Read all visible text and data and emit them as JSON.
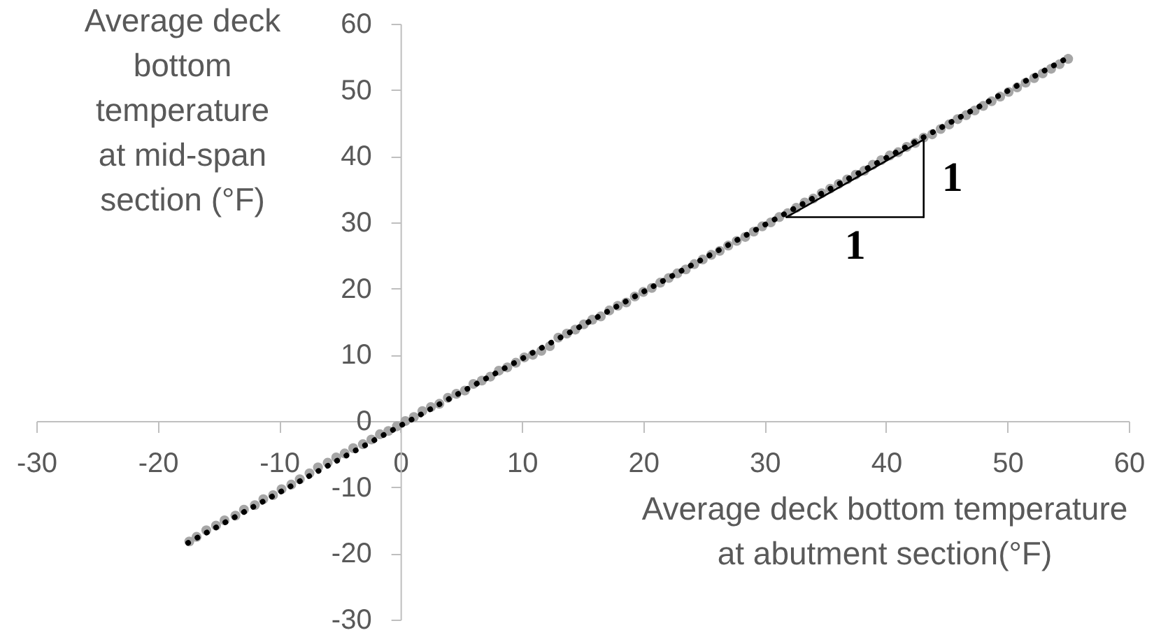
{
  "chart_data": {
    "type": "scatter",
    "xlabel": "Average deck bottom temperature at abutment section(°F)",
    "ylabel": "Average deck bottom temperature at mid-span section (°F)",
    "xlim": [
      -30,
      60
    ],
    "ylim": [
      -30,
      60
    ],
    "xticks": [
      -30,
      -20,
      -10,
      0,
      10,
      20,
      30,
      40,
      50,
      60
    ],
    "yticks": [
      -30,
      -20,
      -10,
      0,
      10,
      20,
      30,
      40,
      50,
      60
    ],
    "marker": "circle",
    "series": [
      {
        "color": "#a6a6a6",
        "x": [
          -17.4,
          -16.8,
          -16.0,
          -15.2,
          -14.5,
          -13.6,
          -12.9,
          -12.0,
          -11.3,
          -10.5,
          -9.8,
          -9.0,
          -8.3,
          -7.5,
          -6.8,
          -6.0,
          -5.3,
          -4.6,
          -3.9,
          -3.1,
          -2.4,
          -1.7,
          -1.0,
          -0.3,
          0.4,
          1.1,
          1.8,
          2.5,
          3.2,
          3.9,
          4.6,
          5.3,
          6.0,
          6.7,
          7.4,
          8.1,
          8.8,
          9.5,
          10.2,
          10.9,
          11.6,
          12.3,
          13.0,
          13.7,
          14.4,
          15.1,
          15.8,
          16.5,
          17.2,
          17.9,
          18.6,
          19.3,
          20.0,
          20.7,
          21.4,
          22.1,
          22.8,
          23.5,
          24.2,
          24.9,
          25.6,
          26.3,
          27.0,
          27.7,
          28.4,
          29.1,
          29.8,
          30.5,
          31.2,
          31.9,
          32.6,
          33.3,
          34.0,
          34.7,
          35.4,
          36.1,
          36.8,
          37.5,
          38.2,
          38.9,
          39.6,
          40.3,
          41.0,
          41.7,
          42.4,
          43.1,
          43.8,
          44.5,
          45.2,
          45.9,
          46.6,
          47.3,
          48.0,
          48.7,
          49.4,
          50.1,
          50.8,
          51.5,
          52.2,
          52.9,
          53.6,
          54.3,
          55.0
        ],
        "values": [
          -18.2,
          -17.5,
          -16.5,
          -15.8,
          -15.0,
          -14.3,
          -13.4,
          -12.7,
          -11.8,
          -11.2,
          -10.3,
          -9.6,
          -8.8,
          -7.9,
          -7.0,
          -6.3,
          -5.5,
          -4.9,
          -4.1,
          -3.5,
          -2.8,
          -2.0,
          -1.5,
          -0.8,
          0.0,
          0.6,
          1.5,
          2.1,
          2.6,
          3.5,
          4.1,
          4.6,
          5.6,
          6.1,
          6.7,
          7.6,
          8.1,
          8.8,
          9.6,
          10.0,
          10.6,
          11.3,
          12.6,
          13.2,
          13.8,
          14.6,
          15.3,
          15.8,
          16.7,
          17.4,
          17.9,
          18.8,
          19.5,
          20.1,
          20.9,
          21.6,
          22.3,
          22.9,
          23.7,
          24.4,
          25.1,
          25.7,
          26.5,
          27.2,
          27.8,
          28.6,
          29.4,
          30.0,
          30.8,
          31.4,
          32.2,
          33.0,
          33.6,
          34.4,
          35.1,
          35.8,
          36.5,
          37.2,
          37.8,
          38.7,
          39.4,
          40.1,
          40.6,
          41.4,
          42.0,
          42.8,
          43.3,
          44.1,
          44.8,
          45.6,
          46.2,
          46.9,
          47.6,
          48.3,
          49.0,
          49.7,
          50.4,
          51.1,
          51.8,
          52.5,
          53.2,
          53.9,
          54.7
        ]
      },
      {
        "type": "line",
        "color": "#000000",
        "line_style": "dotted",
        "marker": "none",
        "x": [
          -17.5,
          55.0
        ],
        "values": [
          -18.4,
          54.9
        ]
      },
      {
        "type": "line",
        "color": "#000000",
        "line_style": "solid",
        "marker": "none",
        "x": [
          31.8,
          43.1
        ],
        "values": [
          30.8,
          42.5
        ]
      },
      {
        "type": "line",
        "name": "1",
        "color": "#000000",
        "line_style": "solid",
        "marker": "none",
        "x": [
          31.8,
          43.1
        ],
        "values": [
          30.8,
          30.8
        ]
      },
      {
        "type": "line",
        "name": "1",
        "color": "#000000",
        "line_style": "solid",
        "marker": "none",
        "x": [
          43.1,
          43.1
        ],
        "values": [
          30.8,
          42.5
        ]
      }
    ]
  }
}
